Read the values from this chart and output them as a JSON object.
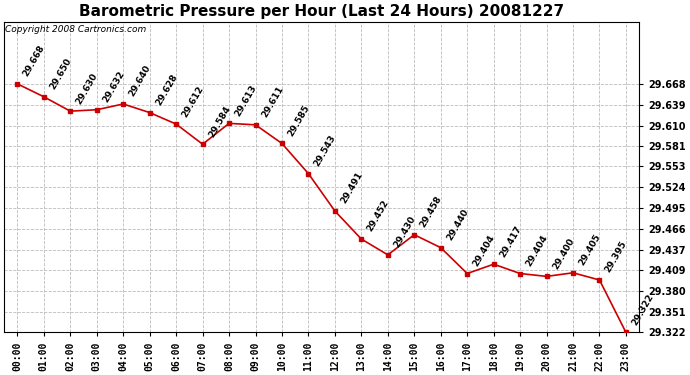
{
  "title": "Barometric Pressure per Hour (Last 24 Hours) 20081227",
  "copyright": "Copyright 2008 Cartronics.com",
  "hours": [
    "00:00",
    "01:00",
    "02:00",
    "03:00",
    "04:00",
    "05:00",
    "06:00",
    "07:00",
    "08:00",
    "09:00",
    "10:00",
    "11:00",
    "12:00",
    "13:00",
    "14:00",
    "15:00",
    "16:00",
    "17:00",
    "18:00",
    "19:00",
    "20:00",
    "21:00",
    "22:00",
    "23:00"
  ],
  "values": [
    29.668,
    29.65,
    29.63,
    29.632,
    29.64,
    29.628,
    29.612,
    29.584,
    29.613,
    29.611,
    29.585,
    29.543,
    29.491,
    29.452,
    29.43,
    29.458,
    29.44,
    29.404,
    29.417,
    29.404,
    29.4,
    29.405,
    29.395,
    29.322
  ],
  "ylim_min": 29.322,
  "ylim_max": 29.668,
  "yticks": [
    29.322,
    29.351,
    29.38,
    29.409,
    29.437,
    29.466,
    29.495,
    29.524,
    29.553,
    29.581,
    29.61,
    29.639,
    29.668
  ],
  "line_color": "#cc0000",
  "marker_color": "#cc0000",
  "bg_color": "#ffffff",
  "grid_color": "#bbbbbb",
  "title_fontsize": 11,
  "label_fontsize": 7,
  "annotation_fontsize": 6.5,
  "copyright_fontsize": 6.5
}
